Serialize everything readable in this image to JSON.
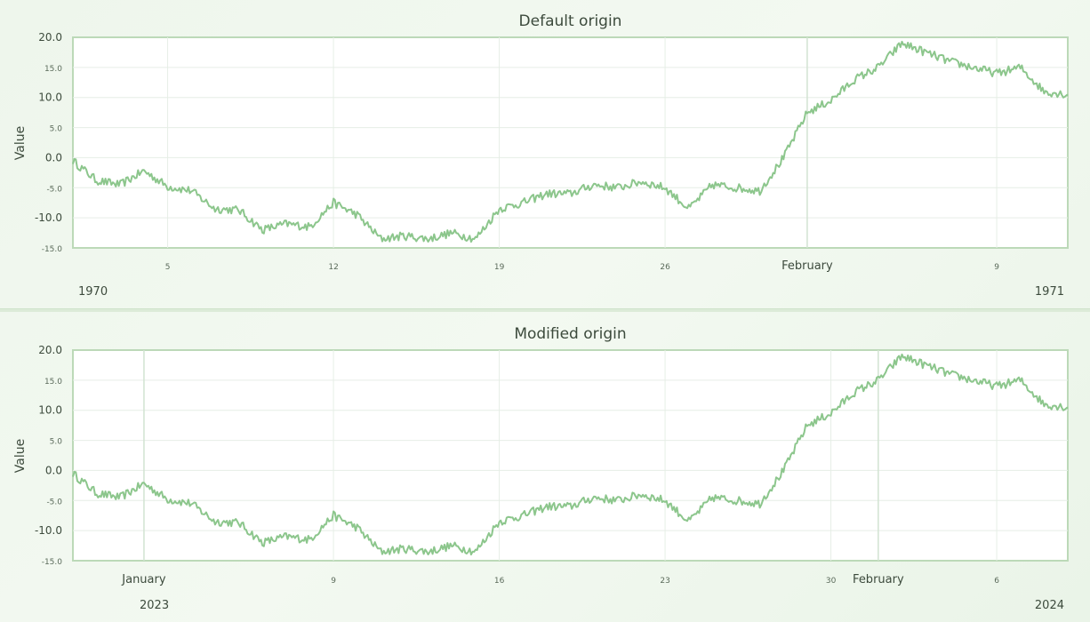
{
  "colors": {
    "line": "#8cc68c",
    "plot_background": "#ffffff",
    "plot_border": "#bcd9b8",
    "grid": "#e6eee6",
    "month_line": "#d2e3d2",
    "page_background": "#eef6ec"
  },
  "chart_data": [
    {
      "type": "line",
      "title": "Default origin",
      "ylabel": "Value",
      "ylim": [
        -15,
        20
      ],
      "yticks": [
        {
          "value": 20,
          "label": "20.0",
          "major": true
        },
        {
          "value": 15,
          "label": "15.0",
          "major": false
        },
        {
          "value": 10,
          "label": "10.0",
          "major": true
        },
        {
          "value": 5,
          "label": "5.0",
          "major": false
        },
        {
          "value": 0,
          "label": "0.0",
          "major": true
        },
        {
          "value": -5,
          "label": "-5.0",
          "major": false
        },
        {
          "value": -10,
          "label": "-10.0",
          "major": true
        },
        {
          "value": -15,
          "label": "-15.0",
          "major": false
        }
      ],
      "xlim": [
        "1970-01-01",
        "1970-02-12"
      ],
      "xticks": [
        {
          "date": "1970-01-05",
          "label": "5",
          "major": false
        },
        {
          "date": "1970-01-12",
          "label": "12",
          "major": false
        },
        {
          "date": "1970-01-19",
          "label": "19",
          "major": false
        },
        {
          "date": "1970-01-26",
          "label": "26",
          "major": false
        },
        {
          "date": "1970-02-01",
          "label": "February",
          "major": true
        },
        {
          "date": "1970-02-09",
          "label": "9",
          "major": false
        }
      ],
      "year_labels": {
        "left": "1970",
        "right": "1971"
      },
      "grid": true,
      "series": [
        {
          "color": "#8cc68c",
          "x": [
            "1970-01-01",
            "1970-01-02",
            "1970-01-03",
            "1970-01-04",
            "1970-01-05",
            "1970-01-06",
            "1970-01-07",
            "1970-01-08",
            "1970-01-09",
            "1970-01-10",
            "1970-01-11",
            "1970-01-12",
            "1970-01-13",
            "1970-01-14",
            "1970-01-15",
            "1970-01-16",
            "1970-01-17",
            "1970-01-18",
            "1970-01-19",
            "1970-01-20",
            "1970-01-21",
            "1970-01-22",
            "1970-01-23",
            "1970-01-24",
            "1970-01-25",
            "1970-01-26",
            "1970-01-27",
            "1970-01-28",
            "1970-01-29",
            "1970-01-30",
            "1970-01-31",
            "1970-02-01",
            "1970-02-02",
            "1970-02-03",
            "1970-02-04",
            "1970-02-05",
            "1970-02-06",
            "1970-02-07",
            "1970-02-08",
            "1970-02-09",
            "1970-02-10",
            "1970-02-11",
            "1970-02-12"
          ],
          "y": [
            -0.5,
            -3.8,
            -4.5,
            -2.2,
            -4.8,
            -5.5,
            -8.5,
            -8.7,
            -12,
            -11,
            -11.5,
            -7.5,
            -9.5,
            -13.5,
            -13,
            -13.5,
            -12.5,
            -13.5,
            -8.5,
            -7.5,
            -6,
            -6,
            -4.5,
            -5,
            -4,
            -5,
            -8.5,
            -4.5,
            -5,
            -5.5,
            0,
            7.5,
            9.5,
            13,
            15,
            19,
            17.5,
            16,
            15,
            14,
            15,
            11,
            10.5
          ]
        }
      ]
    },
    {
      "type": "line",
      "title": "Modified origin",
      "ylabel": "Value",
      "ylim": [
        -15,
        20
      ],
      "yticks": [
        {
          "value": 20,
          "label": "20.0",
          "major": true
        },
        {
          "value": 15,
          "label": "15.0",
          "major": false
        },
        {
          "value": 10,
          "label": "10.0",
          "major": true
        },
        {
          "value": 5,
          "label": "5.0",
          "major": false
        },
        {
          "value": 0,
          "label": "0.0",
          "major": true
        },
        {
          "value": -5,
          "label": "-5.0",
          "major": false
        },
        {
          "value": -10,
          "label": "-10.0",
          "major": true
        },
        {
          "value": -15,
          "label": "-15.0",
          "major": false
        }
      ],
      "xlim": [
        "2022-12-29",
        "2023-02-09"
      ],
      "xticks": [
        {
          "date": "2023-01-01",
          "label": "January",
          "major": true
        },
        {
          "date": "2023-01-09",
          "label": "9",
          "major": false
        },
        {
          "date": "2023-01-16",
          "label": "16",
          "major": false
        },
        {
          "date": "2023-01-23",
          "label": "23",
          "major": false
        },
        {
          "date": "2023-01-30",
          "label": "30",
          "major": false
        },
        {
          "date": "2023-02-01",
          "label": "February",
          "major": true
        },
        {
          "date": "2023-02-06",
          "label": "6",
          "major": false
        }
      ],
      "year_labels": {
        "left": "2023",
        "right": "2024"
      },
      "grid": true,
      "series": [
        {
          "color": "#8cc68c",
          "x": [
            "2022-12-29",
            "2022-12-30",
            "2022-12-31",
            "2023-01-01",
            "2023-01-02",
            "2023-01-03",
            "2023-01-04",
            "2023-01-05",
            "2023-01-06",
            "2023-01-07",
            "2023-01-08",
            "2023-01-09",
            "2023-01-10",
            "2023-01-11",
            "2023-01-12",
            "2023-01-13",
            "2023-01-14",
            "2023-01-15",
            "2023-01-16",
            "2023-01-17",
            "2023-01-18",
            "2023-01-19",
            "2023-01-20",
            "2023-01-21",
            "2023-01-22",
            "2023-01-23",
            "2023-01-24",
            "2023-01-25",
            "2023-01-26",
            "2023-01-27",
            "2023-01-28",
            "2023-01-29",
            "2023-01-30",
            "2023-01-31",
            "2023-02-01",
            "2023-02-02",
            "2023-02-03",
            "2023-02-04",
            "2023-02-05",
            "2023-02-06",
            "2023-02-07",
            "2023-02-08",
            "2023-02-09"
          ],
          "y": [
            -0.5,
            -3.8,
            -4.5,
            -2.2,
            -4.8,
            -5.5,
            -8.5,
            -8.7,
            -12,
            -11,
            -11.5,
            -7.5,
            -9.5,
            -13.5,
            -13,
            -13.5,
            -12.5,
            -13.5,
            -8.5,
            -7.5,
            -6,
            -6,
            -4.5,
            -5,
            -4,
            -5,
            -8.5,
            -4.5,
            -5,
            -5.5,
            0,
            7.5,
            9.5,
            13,
            15,
            19,
            17.5,
            16,
            15,
            14,
            15,
            11,
            10.5
          ]
        }
      ]
    }
  ]
}
